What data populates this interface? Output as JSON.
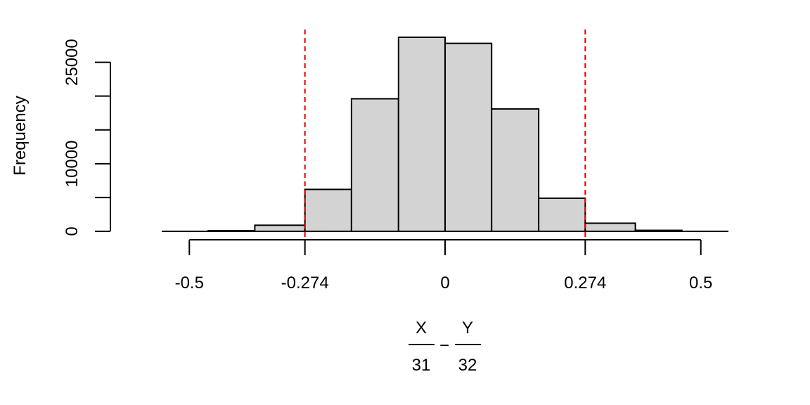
{
  "chart_data": {
    "type": "bar",
    "title": "",
    "ylabel": "Frequency",
    "xlabel": {
      "numerator_left": "X",
      "denominator_left": "31",
      "operator": "−",
      "numerator_right": "Y",
      "denominator_right": "32"
    },
    "bins": [
      {
        "x0": -0.554,
        "x1": -0.463,
        "value": 0
      },
      {
        "x0": -0.463,
        "x1": -0.372,
        "value": 100
      },
      {
        "x0": -0.372,
        "x1": -0.274,
        "value": 900
      },
      {
        "x0": -0.274,
        "x1": -0.183,
        "value": 6200
      },
      {
        "x0": -0.183,
        "x1": -0.091,
        "value": 19600
      },
      {
        "x0": -0.091,
        "x1": 0.0,
        "value": 28700
      },
      {
        "x0": 0.0,
        "x1": 0.091,
        "value": 27800
      },
      {
        "x0": 0.091,
        "x1": 0.183,
        "value": 18100
      },
      {
        "x0": 0.183,
        "x1": 0.274,
        "value": 4900
      },
      {
        "x0": 0.274,
        "x1": 0.372,
        "value": 1200
      },
      {
        "x0": 0.372,
        "x1": 0.463,
        "value": 150
      },
      {
        "x0": 0.463,
        "x1": 0.554,
        "value": 0
      }
    ],
    "xticks": [
      {
        "value": -0.5,
        "label": "-0.5"
      },
      {
        "value": -0.274,
        "label": "-0.274"
      },
      {
        "value": 0,
        "label": "0"
      },
      {
        "value": 0.274,
        "label": "0.274"
      },
      {
        "value": 0.5,
        "label": "0.5"
      }
    ],
    "yticks": [
      {
        "value": 0,
        "label": "0"
      },
      {
        "value": 5000,
        "label": ""
      },
      {
        "value": 10000,
        "label": "10000"
      },
      {
        "value": 15000,
        "label": ""
      },
      {
        "value": 20000,
        "label": ""
      },
      {
        "value": 25000,
        "label": "25000"
      }
    ],
    "xlim": [
      -0.554,
      0.554
    ],
    "ylim": [
      0,
      28700
    ],
    "reference_lines": [
      {
        "x": -0.274,
        "color": "#e00000",
        "style": "dashed"
      },
      {
        "x": 0.274,
        "color": "#e00000",
        "style": "dashed"
      }
    ],
    "bar_fill": "#d3d3d3",
    "bar_stroke": "#000000",
    "grid": false,
    "legend": "none"
  }
}
